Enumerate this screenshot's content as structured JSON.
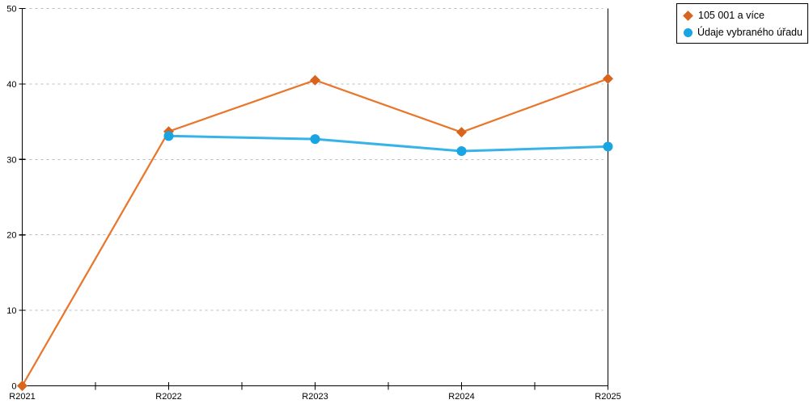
{
  "chart_data": {
    "type": "line",
    "title": "",
    "xlabel": "",
    "ylabel": "",
    "categories": [
      "R2021",
      "R2022",
      "R2023",
      "R2024",
      "R2025"
    ],
    "series": [
      {
        "name": "105 001 a více",
        "values": [
          0,
          33.7,
          40.5,
          33.6,
          40.7
        ],
        "marker": "diamond",
        "line_color": "#E8772B",
        "marker_color": "#D9641E"
      },
      {
        "name": "Údaje vybraného úřadu",
        "values": [
          null,
          33.1,
          32.7,
          31.1,
          31.7
        ],
        "marker": "circle",
        "line_color": "#38B3E8",
        "marker_color": "#18A5E2"
      }
    ],
    "ylim": [
      0,
      50
    ],
    "yticks": [
      0,
      10,
      20,
      30,
      40,
      50
    ],
    "grid": "horizontal-dashed",
    "grid_color": "#BBBBBB",
    "axis_color": "#000000",
    "legend_position": "top-right"
  }
}
